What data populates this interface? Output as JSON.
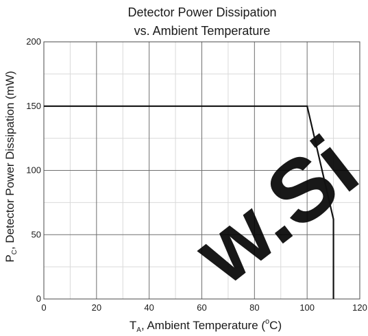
{
  "chart_data": {
    "type": "line",
    "title_line1": "Detector Power Dissipation",
    "title_line2": "vs. Ambient Temperature",
    "xlabel": {
      "main": "T",
      "sub": "A",
      "rest_pre": ", Ambient Temperature (",
      "sup": "o",
      "rest_post": "C)"
    },
    "ylabel": {
      "main": "P",
      "sub": "C",
      "rest": ", Detector Power Dissipation (mW)"
    },
    "xlim": [
      0,
      120
    ],
    "ylim": [
      0,
      200
    ],
    "xticks": [
      0,
      20,
      40,
      60,
      80,
      100,
      120
    ],
    "yticks": [
      0,
      50,
      100,
      150,
      200
    ],
    "x_minor_step": 10,
    "y_minor_step": 25,
    "grid": true,
    "series": [
      {
        "x": [
          0,
          100,
          110,
          110
        ],
        "y": [
          150,
          150,
          62,
          0
        ]
      }
    ],
    "watermark_text": "w.Si",
    "colors": {
      "line": "#111111",
      "major_grid": "#6f6f6f",
      "minor_grid": "#d9d9d9"
    }
  }
}
